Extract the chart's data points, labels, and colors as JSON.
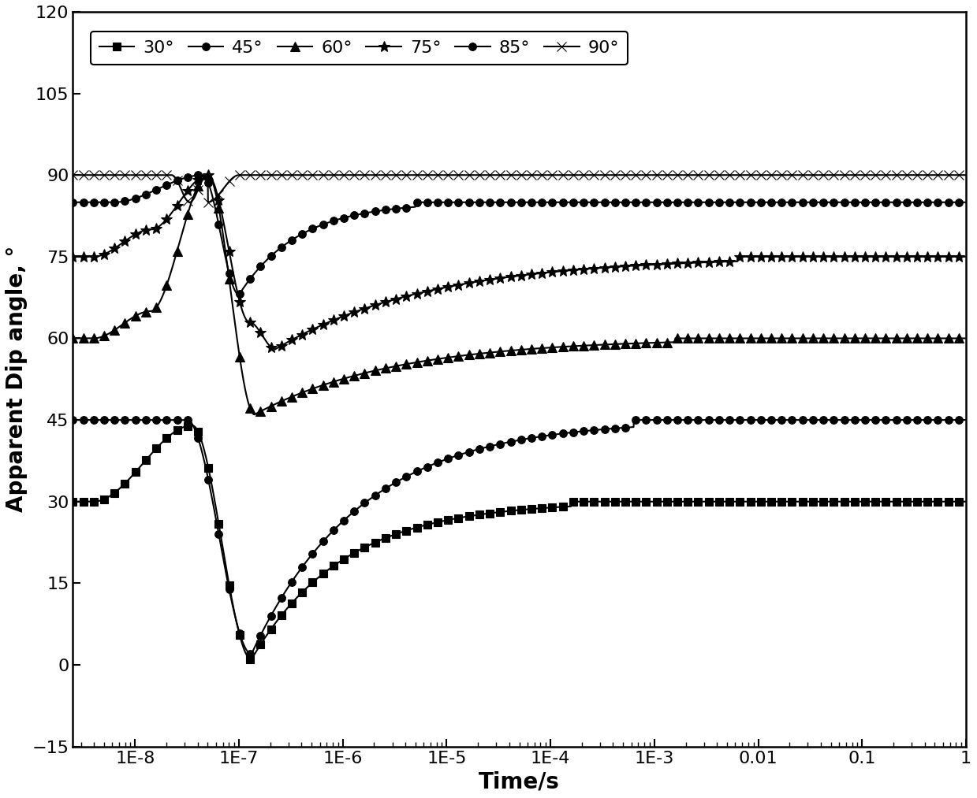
{
  "xlabel": "Time/s",
  "ylabel": "Apparent Dip angle, °",
  "ylim": [
    -15,
    120
  ],
  "yticks": [
    -15,
    0,
    15,
    30,
    45,
    60,
    75,
    90,
    105,
    120
  ],
  "legend_labels": [
    "30°",
    "45°",
    "60°",
    "75°",
    "85°",
    "90°"
  ],
  "markers": [
    "s",
    "o",
    "^",
    "*",
    "o",
    "x"
  ],
  "background_color": "#ffffff",
  "line_color": "#000000",
  "xtick_labels": [
    "1E-8",
    "1E-7",
    "1E-6",
    "1E-5",
    "1E-4",
    "1E-3",
    "0.01",
    "0.1",
    "1"
  ],
  "xtick_vals": [
    1e-08,
    1e-07,
    1e-06,
    1e-05,
    0.0001,
    0.001,
    0.01,
    0.1,
    1
  ]
}
